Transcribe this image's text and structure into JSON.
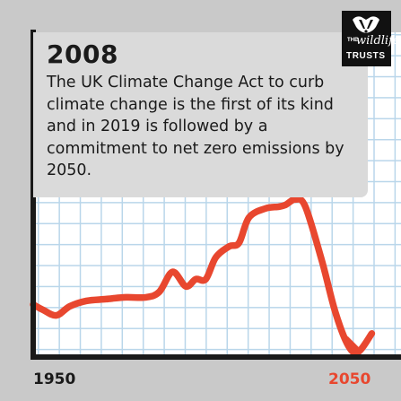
{
  "card": {
    "year": "2008",
    "description": "The UK Climate Change Act to curb climate change is the first of its kind and in 2019 is followed by a commitment to net zero emissions by 2050."
  },
  "logo": {
    "line1": "THE",
    "line2": "wildlife",
    "line3": "TRUSTS",
    "icon": "badger-icon"
  },
  "chart_data": {
    "type": "line",
    "x_start_label": "1950",
    "x_end_label": "2050",
    "xlim": [
      1950,
      2050
    ],
    "ylim": [
      0,
      100
    ],
    "grid": true,
    "line_color": "#e8472f",
    "axis_color": "#1a1a1a",
    "arrow_end": true,
    "series": [
      {
        "x": [
          1950,
          1953,
          1957,
          1961,
          1966,
          1972,
          1978,
          1984,
          1988,
          1992,
          1996,
          1999,
          2002,
          2005,
          2009,
          2012,
          2015,
          2020,
          2024,
          2026,
          2029,
          2032,
          2037,
          2041,
          2045,
          2048,
          2052
        ],
        "y": [
          26,
          23,
          20,
          25,
          28,
          29,
          30,
          30,
          33,
          44,
          36,
          40,
          40,
          52,
          58,
          60,
          74,
          79,
          80,
          81,
          84,
          80,
          50,
          22,
          3,
          0,
          10
        ]
      }
    ]
  }
}
